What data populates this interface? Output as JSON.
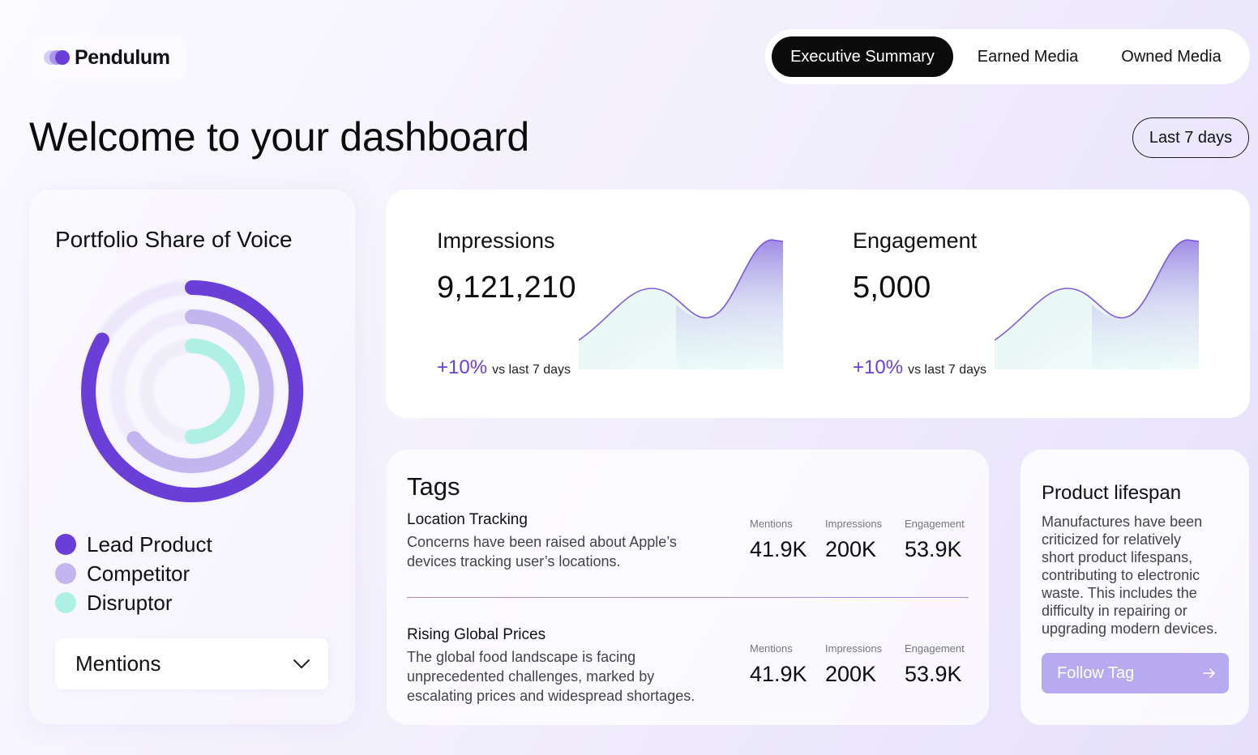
{
  "brand": {
    "name": "Pendulum"
  },
  "nav": {
    "tabs": [
      {
        "label": "Executive Summary",
        "active": true
      },
      {
        "label": "Earned Media",
        "active": false
      },
      {
        "label": "Owned Media",
        "active": false
      }
    ]
  },
  "page": {
    "title": "Welcome to your dashboard",
    "date_range": "Last 7 days"
  },
  "share_of_voice": {
    "title": "Portfolio Share of Voice",
    "legend": [
      {
        "label": "Lead Product",
        "color": "#6a3fd8"
      },
      {
        "label": "Competitor",
        "color": "#c3b6f0"
      },
      {
        "label": "Disruptor",
        "color": "#aef0e6"
      }
    ],
    "metric_select": {
      "value": "Mentions"
    }
  },
  "metrics": {
    "impressions": {
      "label": "Impressions",
      "value": "9,121,210",
      "change": "+10%",
      "change_suffix": "vs last 7 days"
    },
    "engagement": {
      "label": "Engagement",
      "value": "5,000",
      "change": "+10%",
      "change_suffix": "vs last 7 days"
    }
  },
  "tags": {
    "title": "Tags",
    "items": [
      {
        "name": "Location Tracking",
        "description_lines": [
          "Concerns have been raised about Apple’s",
          "devices tracking user’s locations."
        ],
        "stats": [
          {
            "label": "Mentions",
            "value": "41.9K"
          },
          {
            "label": "Impressions",
            "value": "200K"
          },
          {
            "label": "Engagement",
            "value": "53.9K"
          }
        ]
      },
      {
        "name": "Rising Global Prices",
        "description_lines": [
          "The global food landscape is facing",
          "unprecedented challenges, marked by",
          "escalating prices and widespread shortages."
        ],
        "stats": [
          {
            "label": "Mentions",
            "value": "41.9K"
          },
          {
            "label": "Impressions",
            "value": "200K"
          },
          {
            "label": "Engagement",
            "value": "53.9K"
          }
        ]
      }
    ]
  },
  "lifespan": {
    "title": "Product lifespan",
    "description_lines": [
      "Manufactures have been",
      "criticized for relatively",
      "short product lifespans,",
      "contributing to electronic",
      "waste. This includes the",
      "difficulty in repairing or",
      "upgrading modern devices."
    ],
    "button_label": "Follow Tag",
    "button_icon": "arrow-right-icon"
  }
}
